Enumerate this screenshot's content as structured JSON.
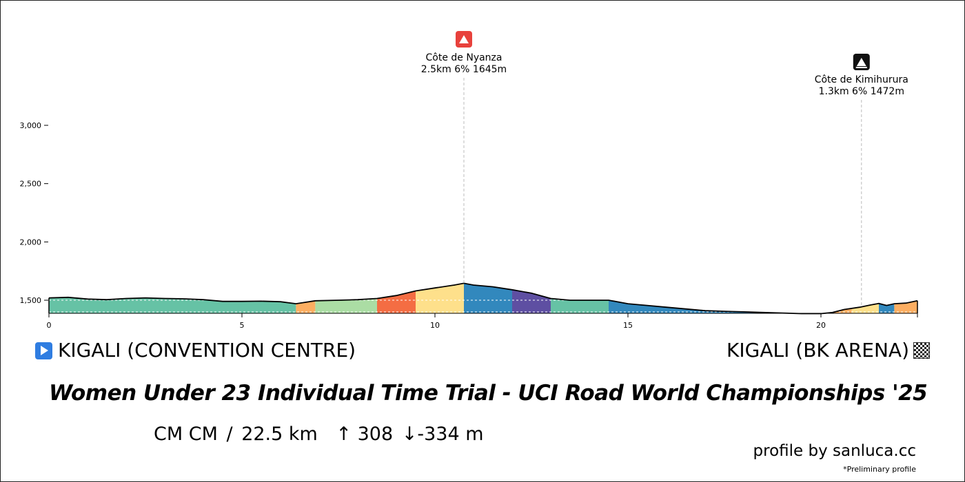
{
  "chart_data": {
    "type": "area",
    "title": "Women Under 23 Individual Time Trial - UCI Road World Championships '25",
    "xlim": [
      0,
      22.5
    ],
    "ylim": [
      1370,
      3100
    ],
    "x_ticks": [
      0,
      5,
      10,
      15,
      20
    ],
    "x_tick_labels": [
      "0",
      "5",
      "10",
      "15",
      "20"
    ],
    "y_ticks": [
      1500,
      2000,
      2500,
      3000
    ],
    "y_tick_labels": [
      "1,500",
      "2,000",
      "2,500",
      "3,000"
    ],
    "profile": {
      "x": [
        0,
        0.5,
        1,
        1.5,
        2,
        2.5,
        3,
        3.5,
        4,
        4.5,
        5,
        5.5,
        6,
        6.4,
        6.9,
        7.5,
        8,
        8.5,
        9,
        9.5,
        10,
        10.5,
        10.75,
        11,
        11.5,
        12,
        12.5,
        13,
        13.5,
        14,
        14.5,
        15,
        15.5,
        16,
        16.5,
        17,
        17.5,
        18,
        18.5,
        19,
        19.5,
        20,
        20.3,
        20.6,
        21,
        21.3,
        21.5,
        21.7,
        21.9,
        22.2,
        22.5
      ],
      "y": [
        1520,
        1525,
        1510,
        1505,
        1515,
        1520,
        1515,
        1512,
        1505,
        1490,
        1490,
        1492,
        1487,
        1470,
        1495,
        1500,
        1505,
        1515,
        1540,
        1580,
        1605,
        1630,
        1645,
        1630,
        1615,
        1590,
        1560,
        1515,
        1500,
        1500,
        1500,
        1470,
        1455,
        1440,
        1425,
        1410,
        1405,
        1400,
        1395,
        1390,
        1385,
        1385,
        1395,
        1420,
        1440,
        1460,
        1472,
        1455,
        1470,
        1475,
        1495
      ]
    },
    "gradient_segments": [
      {
        "from": 0,
        "to": 6.4,
        "color": "#66c2a5"
      },
      {
        "from": 6.4,
        "to": 6.9,
        "color": "#fdae61"
      },
      {
        "from": 6.9,
        "to": 8.5,
        "color": "#abdda4"
      },
      {
        "from": 8.5,
        "to": 9.5,
        "color": "#f46d43"
      },
      {
        "from": 9.5,
        "to": 10.75,
        "color": "#fee08b"
      },
      {
        "from": 10.75,
        "to": 12,
        "color": "#3288bd"
      },
      {
        "from": 12,
        "to": 13,
        "color": "#5e4fa2"
      },
      {
        "from": 13,
        "to": 14.5,
        "color": "#66c2a5"
      },
      {
        "from": 14.5,
        "to": 20.3,
        "color": "#3288bd"
      },
      {
        "from": 20.3,
        "to": 20.8,
        "color": "#fdae61"
      },
      {
        "from": 20.8,
        "to": 21.5,
        "color": "#fee08b"
      },
      {
        "from": 21.5,
        "to": 21.9,
        "color": "#3288bd"
      },
      {
        "from": 21.9,
        "to": 22.5,
        "color": "#fdae61"
      }
    ],
    "climbs": [
      {
        "name": "Côte de Nyanza",
        "stats": "2.5km 6% 1645m",
        "km": 10.75,
        "icon": "mountain-red-icon",
        "icon_color": "#e8413c"
      },
      {
        "name": "Côte de Kimihurura",
        "stats": "1.3km 6% 1472m",
        "km": 21.05,
        "icon": "mountain-black-icon",
        "icon_color": "#111111"
      }
    ]
  },
  "start": {
    "label": "KIGALI (CONVENTION CENTRE)",
    "icon": "play-icon"
  },
  "finish": {
    "label": "KIGALI (BK ARENA)",
    "icon": "checkered-flag-icon"
  },
  "race_title": "Women Under 23 Individual Time Trial - UCI Road World Championships '25",
  "stats": {
    "type": "CM CM",
    "sep": "/",
    "distance": "22.5 km",
    "gain": "↑ 308",
    "loss": "↓-334 m"
  },
  "credit": "profile by sanluca.cc",
  "note": "*Preliminary profile"
}
